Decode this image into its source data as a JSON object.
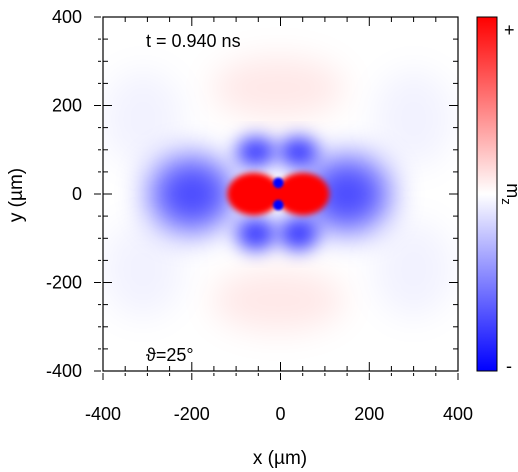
{
  "chart_data": {
    "type": "heatmap",
    "title": "",
    "xlabel": "x (µm)",
    "ylabel": "y (µm)",
    "xlim": [
      -400,
      400
    ],
    "ylim": [
      -400,
      400
    ],
    "x_ticks": [
      "-400",
      "-200",
      "0",
      "200",
      "400"
    ],
    "y_ticks": [
      "400",
      "200",
      "0",
      "-200",
      "-400"
    ],
    "colorbar": {
      "label": "m",
      "label_subscript": "z",
      "max_label": "+",
      "min_label": "-",
      "colors": {
        "max": "#ff0000",
        "mid": "#ffffff",
        "min": "#0000ff"
      }
    },
    "annotations": {
      "time": "t = 0.940 ns",
      "angle": "ϑ=25°"
    },
    "features": [
      {
        "name": "central-positive-lobe",
        "x": -5,
        "y": 0,
        "sign": "+"
      },
      {
        "name": "core-dot-top",
        "x": -5,
        "y": 25,
        "sign": "-"
      },
      {
        "name": "core-dot-bottom",
        "x": -5,
        "y": -25,
        "sign": "-"
      },
      {
        "name": "left-negative-lobe",
        "x": -200,
        "y": 0,
        "sign": "-"
      },
      {
        "name": "right-negative-lobe",
        "x": 150,
        "y": 0,
        "sign": "-"
      },
      {
        "name": "upper-negative-lobes",
        "x": -5,
        "y": 90,
        "sign": "-"
      },
      {
        "name": "lower-negative-lobes",
        "x": -5,
        "y": -90,
        "sign": "-"
      },
      {
        "name": "upper-faint-positive-arc",
        "x": -5,
        "y": 230,
        "sign": "+"
      },
      {
        "name": "lower-faint-positive-arc",
        "x": -5,
        "y": -230,
        "sign": "+"
      }
    ]
  }
}
